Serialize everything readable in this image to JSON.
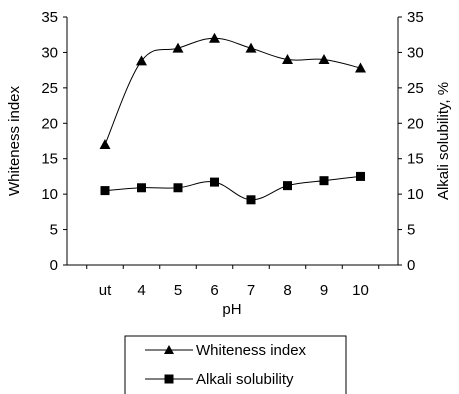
{
  "chart_data": {
    "type": "line",
    "categories": [
      "ut",
      "4",
      "5",
      "6",
      "7",
      "8",
      "9",
      "10"
    ],
    "series": [
      {
        "name": "Whiteness index",
        "axis": "left",
        "marker": "triangle",
        "values": [
          17.0,
          28.8,
          30.6,
          32.0,
          30.6,
          29.0,
          29.0,
          27.8
        ]
      },
      {
        "name": "Alkali solubility",
        "axis": "right",
        "marker": "square",
        "values": [
          10.5,
          10.9,
          10.9,
          11.7,
          9.2,
          11.2,
          11.9,
          12.5
        ]
      }
    ],
    "xlabel": "pH",
    "ylabel": "Whiteness index",
    "y2label": "Alkali solubility, %",
    "ylim": [
      0,
      35
    ],
    "y2lim": [
      0,
      35
    ],
    "yticks": [
      "0",
      "5",
      "10",
      "15",
      "20",
      "25",
      "30",
      "35"
    ],
    "y2ticks": [
      "0",
      "5",
      "10",
      "15",
      "20",
      "25",
      "30",
      "35"
    ],
    "grid": false,
    "legend_position": "bottom",
    "line_color": "#000000"
  }
}
